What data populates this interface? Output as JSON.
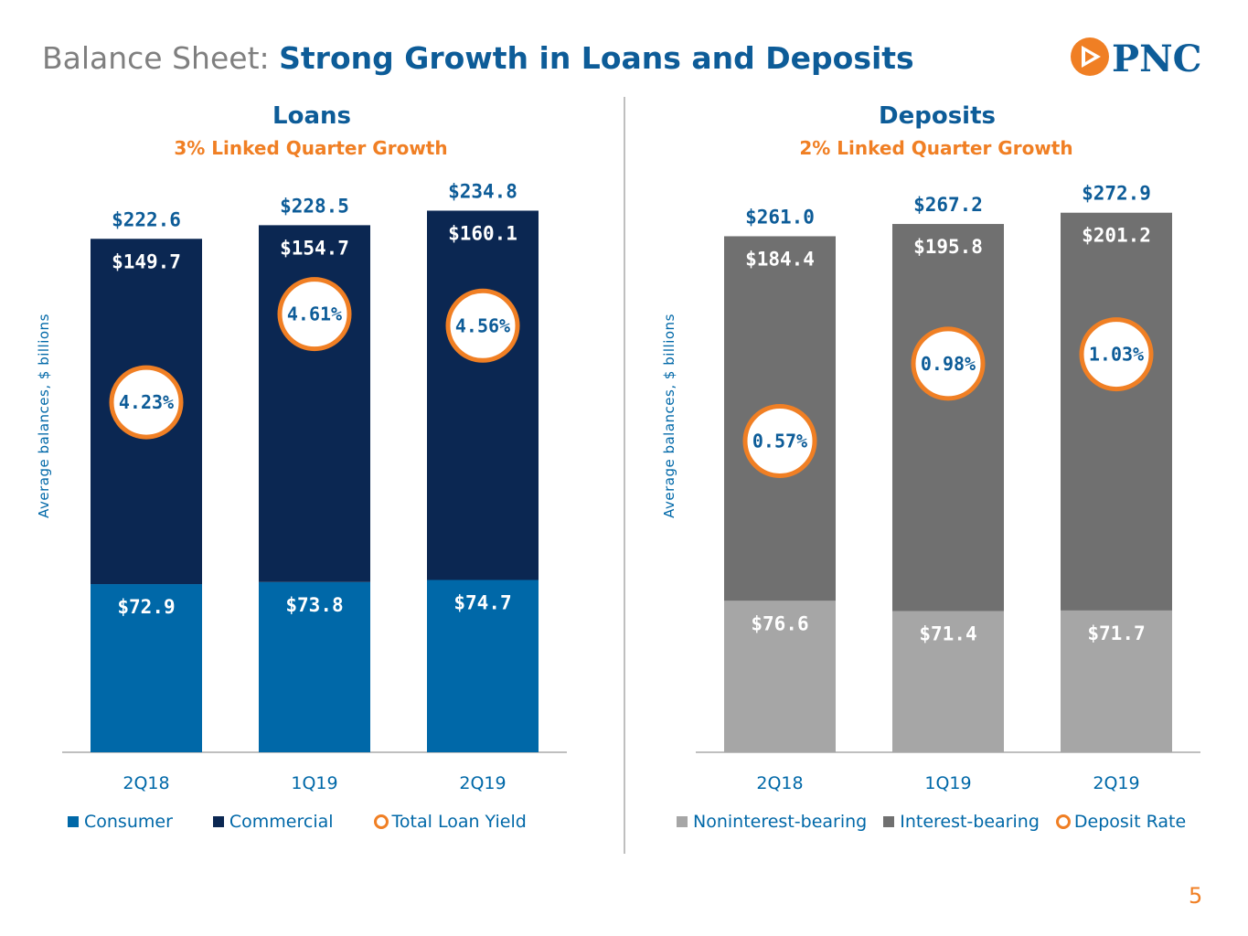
{
  "header": {
    "title_prefix": "Balance Sheet:",
    "title_main": "Strong Growth in Loans and Deposits",
    "logo_text": "PNC"
  },
  "page_number": "5",
  "colors": {
    "consumer": "#0068a8",
    "commercial": "#0b2752",
    "noninterest": "#a6a6a6",
    "interest": "#707070",
    "accent": "#f07f24",
    "brand_blue": "#0d5c98"
  },
  "loans": {
    "title": "Loans",
    "subtitle": "3% Linked Quarter Growth",
    "ylabel": "Average balances, $ billions",
    "legend": [
      "Consumer",
      "Commercial",
      "Total Loan Yield"
    ]
  },
  "deposits": {
    "title": "Deposits",
    "subtitle": "2% Linked Quarter Growth",
    "ylabel": "Average balances, $ billions",
    "legend": [
      "Noninterest-bearing",
      "Interest-bearing",
      "Deposit Rate"
    ]
  },
  "chart_data": [
    {
      "type": "bar",
      "stacked": true,
      "title": "Loans",
      "ylabel": "Average balances, $ billions",
      "categories": [
        "2Q18",
        "1Q19",
        "2Q19"
      ],
      "series": [
        {
          "name": "Consumer",
          "values": [
            72.9,
            73.8,
            74.7
          ],
          "labels": [
            "$72.9",
            "$73.8",
            "$74.7"
          ]
        },
        {
          "name": "Commercial",
          "values": [
            149.7,
            154.7,
            160.1
          ],
          "labels": [
            "$149.7",
            "$154.7",
            "$160.1"
          ]
        }
      ],
      "totals": [
        222.6,
        228.5,
        234.8
      ],
      "total_labels": [
        "$222.6",
        "$228.5",
        "$234.8"
      ],
      "rate": {
        "name": "Total Loan Yield",
        "values": [
          4.23,
          4.61,
          4.56
        ],
        "labels": [
          "4.23%",
          "4.61%",
          "4.56%"
        ],
        "ylim": [
          3.6,
          4.9
        ]
      },
      "ylim": [
        0,
        240
      ]
    },
    {
      "type": "bar",
      "stacked": true,
      "title": "Deposits",
      "ylabel": "Average balances, $ billions",
      "categories": [
        "2Q18",
        "1Q19",
        "2Q19"
      ],
      "series": [
        {
          "name": "Noninterest-bearing",
          "values": [
            76.6,
            71.4,
            71.7
          ],
          "labels": [
            "$76.6",
            "$71.4",
            "$71.7"
          ]
        },
        {
          "name": "Interest-bearing",
          "values": [
            184.4,
            195.8,
            201.2
          ],
          "labels": [
            "$184.4",
            "$195.8",
            "$201.2"
          ]
        }
      ],
      "totals": [
        261.0,
        267.2,
        272.9
      ],
      "total_labels": [
        "$261.0",
        "$267.2",
        "$272.9"
      ],
      "rate": {
        "name": "Deposit Rate",
        "values": [
          0.57,
          0.98,
          1.03
        ],
        "labels": [
          "0.57%",
          "0.98%",
          "1.03%"
        ],
        "ylim": [
          0.0,
          1.6
        ]
      },
      "ylim": [
        0,
        280
      ]
    }
  ]
}
